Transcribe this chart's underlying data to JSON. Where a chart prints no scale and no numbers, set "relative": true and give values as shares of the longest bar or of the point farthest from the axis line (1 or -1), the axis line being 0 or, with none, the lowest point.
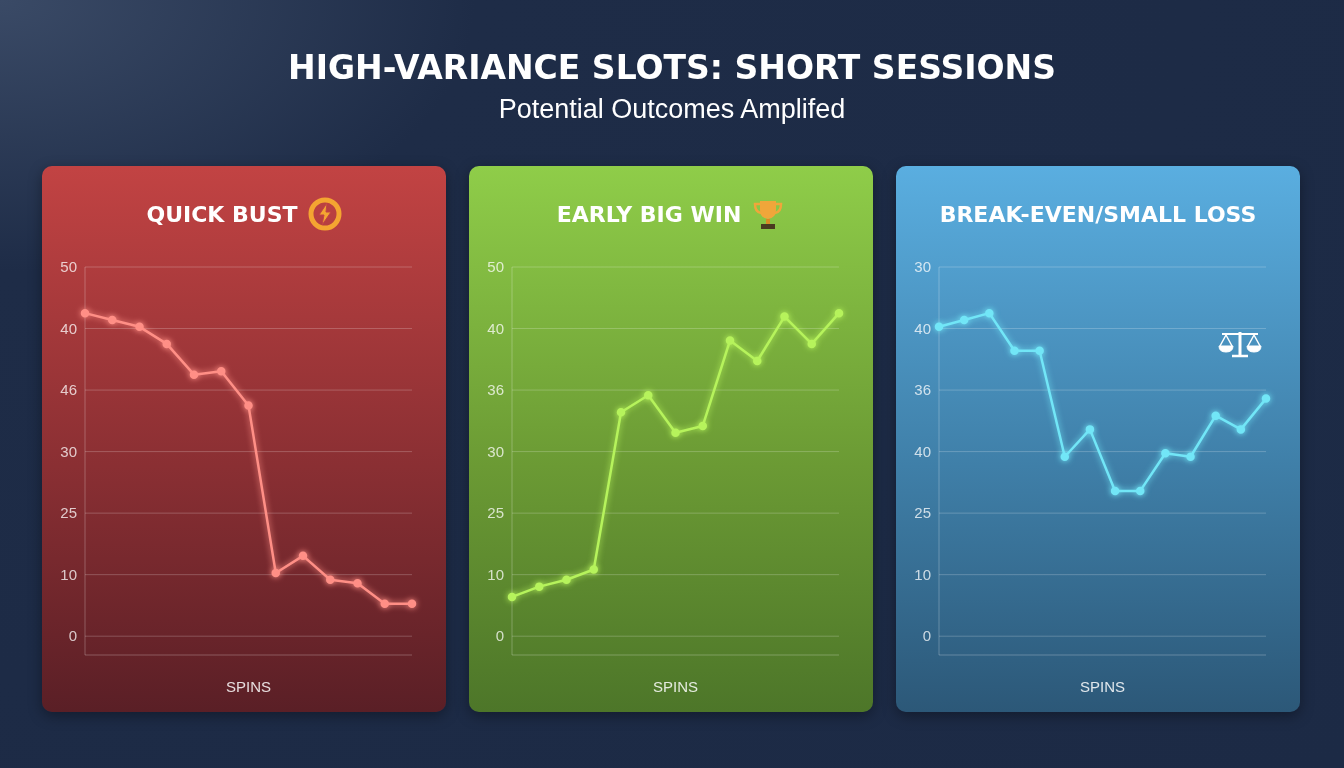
{
  "chart_data": [
    {
      "type": "line",
      "title": "QUICK BUST",
      "xlabel": "SPINS",
      "relative": true,
      "annotations": [
        "HIGH-VARIANCE SLOTS: SHORT SESSIONS",
        "Potential Outcomes Amplifed",
        "50",
        "40",
        "46",
        "30",
        "25",
        "10",
        "0"
      ],
      "categories": [
        null,
        null,
        null,
        null,
        null,
        null,
        null,
        null,
        null,
        null,
        null,
        null,
        null
      ],
      "values": [
        1,
        0.98,
        0.96,
        0.91,
        0.82,
        0.83,
        0.73,
        0.24,
        0.29,
        0.22,
        0.21,
        0.15,
        0.15
      ],
      "color": "#ff8f86",
      "grid": "y",
      "marker": "circle",
      "line_style": "solid"
    },
    {
      "type": "line",
      "title": "EARLY BIG WIN",
      "xlabel": "SPINS",
      "relative": true,
      "annotations": [
        "50",
        "40",
        "36",
        "30",
        "25",
        "10",
        "0"
      ],
      "categories": [
        null,
        null,
        null,
        null,
        null,
        null,
        null,
        null,
        null,
        null,
        null,
        null,
        null
      ],
      "values": [
        0.17,
        0.2,
        0.22,
        0.25,
        0.71,
        0.76,
        0.65,
        0.67,
        0.92,
        0.86,
        0.99,
        0.91,
        1
      ],
      "color": "#b6f35c",
      "grid": "y",
      "marker": "circle",
      "line_style": "solid"
    },
    {
      "type": "line",
      "title": "BREAK-EVEN/SMALL LOSS",
      "xlabel": "SPINS",
      "relative": true,
      "annotations": [
        "30",
        "40",
        "36",
        "40",
        "25",
        "10",
        "0"
      ],
      "categories": [
        null,
        null,
        null,
        null,
        null,
        null,
        null,
        null,
        null,
        null,
        null,
        null,
        null,
        null
      ],
      "values": [
        0.96,
        0.98,
        1,
        0.89,
        0.89,
        0.58,
        0.66,
        0.48,
        0.48,
        0.59,
        0.58,
        0.7,
        0.66,
        0.75
      ],
      "color": "#72e6f7",
      "grid": "y",
      "marker": "circle",
      "line_style": "solid"
    }
  ]
}
